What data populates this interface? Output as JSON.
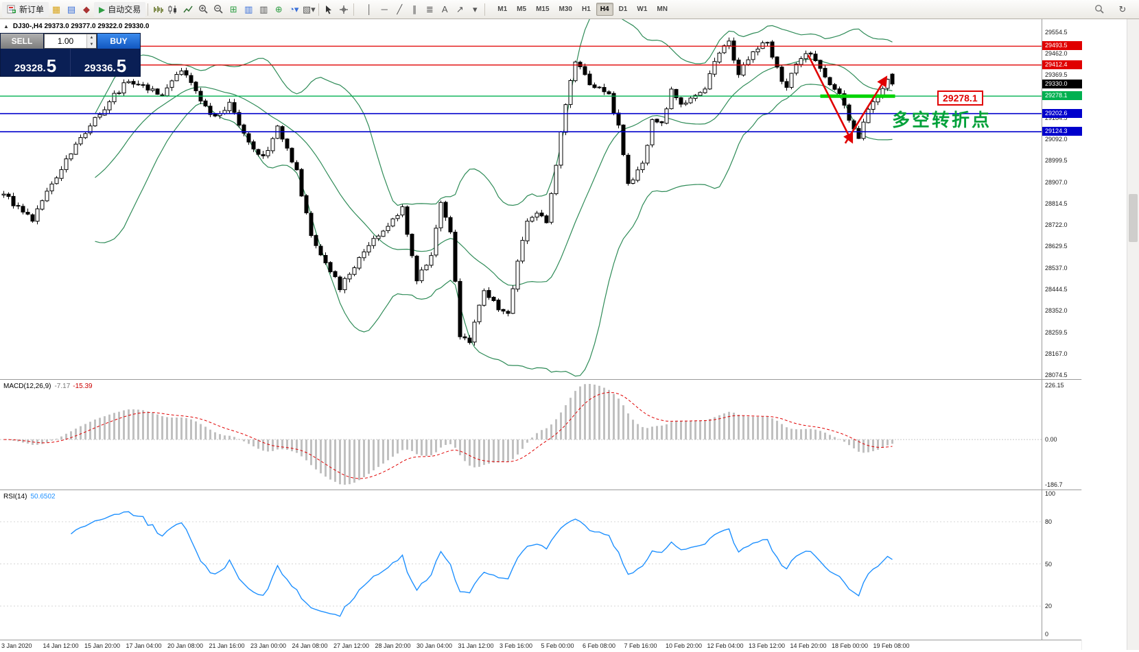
{
  "colors": {
    "level_red": "#e00000",
    "level_blue": "#0000cc",
    "level_green": "#00b050",
    "bright_green": "#00d400",
    "bollinger": "#2e8b57",
    "macd_hist": "#c0c0c0",
    "macd_signal": "#e00000",
    "rsi_line": "#1e90ff",
    "buy_blue": "#1f6fd8",
    "sell_gray": "#8f8f8f",
    "panel_navy": "#0a1f55"
  },
  "toolbar": {
    "new_order_label": "新订单",
    "auto_trading_label": "自动交易",
    "timeframes": {
      "items": [
        "M1",
        "M5",
        "M15",
        "M30",
        "H1",
        "H4",
        "D1",
        "W1",
        "MN"
      ],
      "active": "H4"
    },
    "draw_tools": [
      {
        "name": "vertical-line-icon",
        "glyph": "│"
      },
      {
        "name": "horizontal-line-icon",
        "glyph": "─"
      },
      {
        "name": "trendline-icon",
        "glyph": "╱"
      },
      {
        "name": "equidistant-channel-icon",
        "glyph": "∥"
      },
      {
        "name": "fibonacci-icon",
        "glyph": "≣"
      },
      {
        "name": "text-label-icon",
        "glyph": "A"
      },
      {
        "name": "arrow-object-icon",
        "glyph": "↗"
      },
      {
        "name": "shapes-dropdown-icon",
        "glyph": "▾"
      }
    ]
  },
  "chart": {
    "symbol_info": "DJ30-,H4  29373.0 29377.0 29322.0 29330.0",
    "price_axis": {
      "labels": [
        "29554.5",
        "29462.0",
        "29369.5",
        "29184.5",
        "29092.0",
        "28999.5",
        "28907.0",
        "28814.5",
        "28722.0",
        "28629.5",
        "28537.0",
        "28444.5",
        "28352.0",
        "28259.5",
        "28167.0",
        "28074.5"
      ]
    },
    "levels": [
      {
        "price": 29493.5,
        "label": "29493.5",
        "color": "red"
      },
      {
        "price": 29412.4,
        "label": "29412.4",
        "color": "red"
      },
      {
        "price": 29278.1,
        "label": "29278.1",
        "color": "green"
      },
      {
        "price": 29202.6,
        "label": "29202.6",
        "color": "blue"
      },
      {
        "price": 29124.3,
        "label": "29124.3",
        "color": "blue"
      }
    ],
    "current_price": {
      "value": 29330.0,
      "label": "29330.0"
    },
    "annotations": {
      "price_box": "29278.1",
      "note_text": "多空转折点",
      "green_segment": {
        "price": 29278.1,
        "from_candle": 170,
        "to_candle": 185
      },
      "arrows": [
        [
          [
            167.5,
            29455
          ],
          [
            176.5,
            29085
          ]
        ],
        [
          [
            175.2,
            29075
          ],
          [
            183.6,
            29355
          ]
        ]
      ]
    }
  },
  "chart_data": {
    "type": "candlestick",
    "symbol": "DJ30-",
    "timeframe": "H4",
    "ohlc_last": {
      "open": 29373.0,
      "high": 29377.0,
      "low": 29322.0,
      "close": 29330.0
    },
    "ylim": [
      28074.5,
      29554.5
    ],
    "candle_count": 186,
    "price_keypoints": [
      [
        0,
        28850
      ],
      [
        3,
        28800
      ],
      [
        6,
        28745
      ],
      [
        10,
        28900
      ],
      [
        14,
        29040
      ],
      [
        18,
        29150
      ],
      [
        23,
        29280
      ],
      [
        26,
        29350
      ],
      [
        30,
        29310
      ],
      [
        33,
        29290
      ],
      [
        37,
        29390
      ],
      [
        40,
        29300
      ],
      [
        43,
        29190
      ],
      [
        47,
        29240
      ],
      [
        50,
        29110
      ],
      [
        54,
        29010
      ],
      [
        57,
        29140
      ],
      [
        61,
        28950
      ],
      [
        64,
        28670
      ],
      [
        67,
        28570
      ],
      [
        70,
        28450
      ],
      [
        73,
        28540
      ],
      [
        76,
        28630
      ],
      [
        80,
        28720
      ],
      [
        83,
        28800
      ],
      [
        86,
        28480
      ],
      [
        89,
        28600
      ],
      [
        91,
        28830
      ],
      [
        93,
        28690
      ],
      [
        95,
        28245
      ],
      [
        97,
        28215
      ],
      [
        100,
        28450
      ],
      [
        103,
        28360
      ],
      [
        105,
        28330
      ],
      [
        107,
        28570
      ],
      [
        109,
        28750
      ],
      [
        111,
        28780
      ],
      [
        113,
        28720
      ],
      [
        115,
        28980
      ],
      [
        117,
        29250
      ],
      [
        119,
        29425
      ],
      [
        122,
        29335
      ],
      [
        126,
        29280
      ],
      [
        128,
        29145
      ],
      [
        130,
        28895
      ],
      [
        133,
        28980
      ],
      [
        135,
        29175
      ],
      [
        137,
        29160
      ],
      [
        139,
        29305
      ],
      [
        141,
        29250
      ],
      [
        144,
        29280
      ],
      [
        146,
        29310
      ],
      [
        149,
        29470
      ],
      [
        151,
        29510
      ],
      [
        153,
        29365
      ],
      [
        155,
        29440
      ],
      [
        157,
        29485
      ],
      [
        159,
        29515
      ],
      [
        161,
        29395
      ],
      [
        163,
        29305
      ],
      [
        165,
        29425
      ],
      [
        167,
        29455
      ],
      [
        169,
        29440
      ],
      [
        171,
        29365
      ],
      [
        174,
        29280
      ],
      [
        176,
        29175
      ],
      [
        178,
        29100
      ],
      [
        180,
        29220
      ],
      [
        182,
        29280
      ],
      [
        183,
        29310
      ],
      [
        184,
        29355
      ],
      [
        185,
        29330
      ]
    ],
    "indicators": [
      {
        "name": "Bollinger Bands",
        "period": 20,
        "deviation": 2
      },
      {
        "name": "MACD",
        "fast": 12,
        "slow": 26,
        "signal": 9,
        "values": [
          -7.17,
          -15.39
        ]
      },
      {
        "name": "RSI",
        "period": 14,
        "value": 50.6502
      }
    ]
  },
  "macd_panel": {
    "label": "MACD(12,26,9)",
    "value_main": "-7.17",
    "value_signal": "-15.39",
    "axis": [
      "226.15",
      "0.00",
      "-186.7"
    ]
  },
  "rsi_panel": {
    "label": "RSI(14)",
    "value": "50.6502",
    "axis": [
      "100",
      "80",
      "50",
      "20",
      "0"
    ]
  },
  "time_axis": {
    "labels": [
      "3 Jan 2020",
      "14 Jan 12:00",
      "15 Jan 20:00",
      "17 Jan 04:00",
      "20 Jan 08:00",
      "21 Jan 16:00",
      "23 Jan 00:00",
      "24 Jan 08:00",
      "27 Jan 12:00",
      "28 Jan 20:00",
      "30 Jan 04:00",
      "31 Jan 12:00",
      "3 Feb 16:00",
      "5 Feb 00:00",
      "6 Feb 08:00",
      "7 Feb 16:00",
      "10 Feb 20:00",
      "12 Feb 04:00",
      "13 Feb 12:00",
      "14 Feb 20:00",
      "18 Feb 00:00",
      "19 Feb 08:00"
    ]
  },
  "trade_panel": {
    "sell_label": "SELL",
    "buy_label": "BUY",
    "lot": "1.00",
    "sell_price": "29328.5",
    "buy_price": "29336.5",
    "sell_price_main": "29328.",
    "sell_price_big": "5",
    "buy_price_main": "29336.",
    "buy_price_big": "5"
  }
}
